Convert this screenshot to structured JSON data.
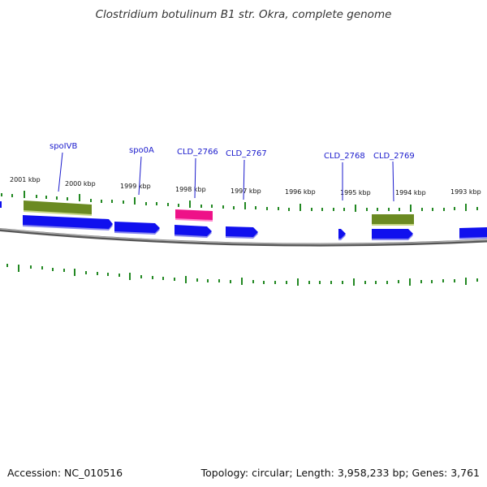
{
  "title": "Clostridium botulinum B1 str. Okra, complete genome",
  "footer": {
    "accession": "Accession: NC_010516",
    "summary": "Topology: circular; Length: 3,958,233 bp; Genes: 3,761"
  },
  "colors": {
    "forward_gene": "#1010ee",
    "forward_gene_shadow": "#8888ee",
    "rrna_olive": "#6b8a22",
    "highlight_gene": "#ee1188",
    "tick_green": "#228822",
    "backbone_gray": "#808080",
    "label_blue": "#1a1acc"
  },
  "kbp_ticks": [
    "2001 kbp",
    "2000 kbp",
    "1999 kbp",
    "1998 kbp",
    "1997 kbp",
    "1996 kbp",
    "1995 kbp",
    "1994 kbp",
    "1993 kbp"
  ],
  "gene_labels": [
    "spoIVB",
    "spo0A",
    "CLD_2766",
    "CLD_2767",
    "CLD_2768",
    "CLD_2769"
  ]
}
